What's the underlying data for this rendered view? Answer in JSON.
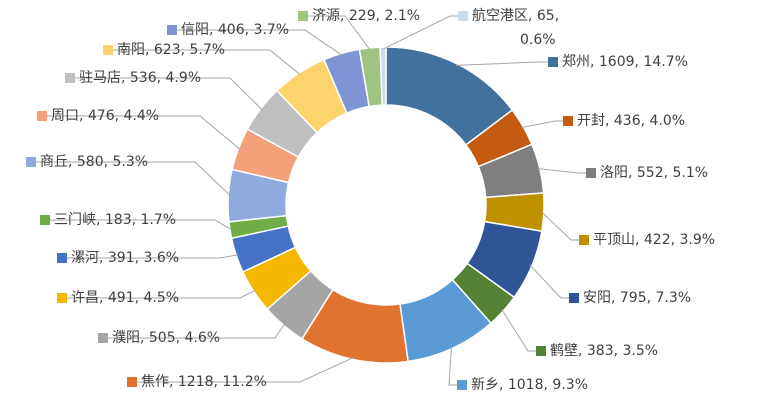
{
  "chart_data": {
    "type": "donut",
    "values": [
      1609,
      436,
      552,
      422,
      795,
      383,
      1018,
      1218,
      505,
      491,
      391,
      183,
      580,
      476,
      536,
      623,
      406,
      229,
      65
    ],
    "value_labels": [
      "郑州, 1609, 14.7%",
      "开封, 436, 4.0%",
      "洛阳, 552, 5.1%",
      "平顶山, 422, 3.9%",
      "安阳, 795, 7.3%",
      "鹤壁, 383, 3.5%",
      "新乡, 1018, 9.3%",
      "焦作, 1218, 11.2%",
      "濮阳, 505, 4.6%",
      "许昌, 491, 4.5%",
      "漯河, 391, 3.6%",
      "三门峡, 183, 1.7%",
      "商丘, 580, 5.3%",
      "周口, 476, 4.4%",
      "驻马店, 536, 4.9%",
      "南阳, 623, 5.7%",
      "信阳, 406, 3.7%",
      "济源, 229, 2.1%",
      "航空港区, 65, 0.6%"
    ],
    "colors": [
      "#41719c",
      "#c55a11",
      "#7f7f7f",
      "#bf9000",
      "#2f5597",
      "#548235",
      "#5b9bd5",
      "#e07330",
      "#a5a5a5",
      "#f4b800",
      "#4472c4",
      "#70ad47",
      "#8faadc",
      "#f4a07a",
      "#bfbfbf",
      "#ffd36b",
      "#7f94d4",
      "#9dc481",
      "#c9dcec"
    ]
  }
}
